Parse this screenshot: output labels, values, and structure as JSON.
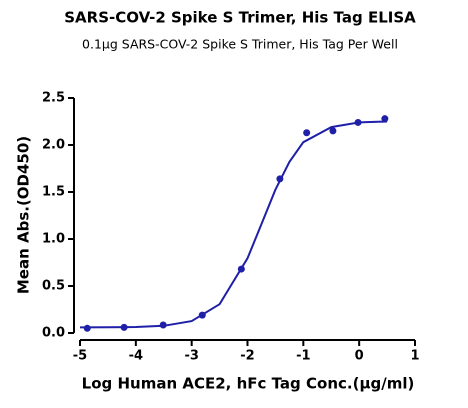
{
  "chart_data": {
    "type": "scatter",
    "title": "SARS-COV-2 Spike S Trimer, His Tag ELISA",
    "subtitle": "0.1μg SARS-COV-2 Spike S Trimer, His Tag Per Well",
    "x_label": "Log Human ACE2, hFc Tag Conc.(μg/ml)",
    "y_label": "Mean Abs.(OD450)",
    "color": "#1f1fa8",
    "x": [
      -4.87,
      -4.21,
      -3.51,
      -2.81,
      -2.11,
      -1.42,
      -0.94,
      -0.47,
      -0.02,
      0.46
    ],
    "values": [
      0.05,
      0.06,
      0.085,
      0.19,
      0.68,
      1.64,
      2.13,
      2.15,
      2.24,
      2.28
    ],
    "curve": {
      "x": [
        -5,
        -4.5,
        -4,
        -3.5,
        -3,
        -2.5,
        -2,
        -1.75,
        -1.5,
        -1.25,
        -1,
        -0.5,
        0,
        0.5
      ],
      "y": [
        0.06,
        0.061,
        0.064,
        0.077,
        0.127,
        0.306,
        0.795,
        1.16,
        1.525,
        1.82,
        2.03,
        2.19,
        2.24,
        2.25
      ]
    },
    "xlim": [
      -5,
      1
    ],
    "ylim": [
      0,
      2.5
    ],
    "xticks": [
      -5,
      -4,
      -3,
      -2,
      -1,
      0,
      1
    ],
    "yticks": [
      {
        "value": 0,
        "label": "0.0"
      },
      0.5,
      {
        "value": 1,
        "label": "1.0"
      },
      1.5,
      {
        "value": 2,
        "label": "2.0"
      },
      2.5
    ]
  }
}
